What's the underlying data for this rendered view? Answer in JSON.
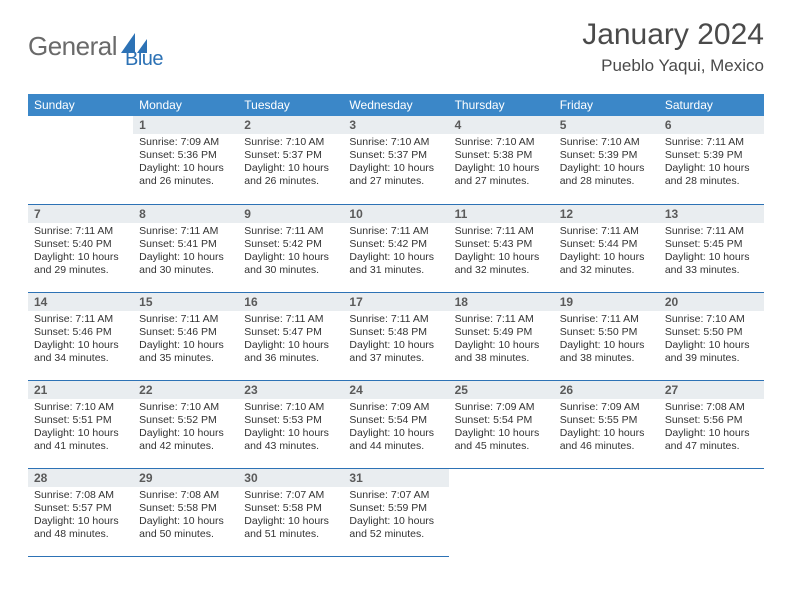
{
  "logo": {
    "part1": "General",
    "part2": "Blue"
  },
  "title": "January 2024",
  "location": "Pueblo Yaqui, Mexico",
  "colors": {
    "header_bg": "#3b87c8",
    "daynum_bg": "#e9edf0",
    "rule": "#2d72b5",
    "logo_gray": "#6a6a6a",
    "logo_blue": "#2d72b5"
  },
  "weekdays": [
    "Sunday",
    "Monday",
    "Tuesday",
    "Wednesday",
    "Thursday",
    "Friday",
    "Saturday"
  ],
  "weeks": [
    [
      null,
      {
        "n": "1",
        "sr": "Sunrise: 7:09 AM",
        "ss": "Sunset: 5:36 PM",
        "d1": "Daylight: 10 hours",
        "d2": "and 26 minutes."
      },
      {
        "n": "2",
        "sr": "Sunrise: 7:10 AM",
        "ss": "Sunset: 5:37 PM",
        "d1": "Daylight: 10 hours",
        "d2": "and 26 minutes."
      },
      {
        "n": "3",
        "sr": "Sunrise: 7:10 AM",
        "ss": "Sunset: 5:37 PM",
        "d1": "Daylight: 10 hours",
        "d2": "and 27 minutes."
      },
      {
        "n": "4",
        "sr": "Sunrise: 7:10 AM",
        "ss": "Sunset: 5:38 PM",
        "d1": "Daylight: 10 hours",
        "d2": "and 27 minutes."
      },
      {
        "n": "5",
        "sr": "Sunrise: 7:10 AM",
        "ss": "Sunset: 5:39 PM",
        "d1": "Daylight: 10 hours",
        "d2": "and 28 minutes."
      },
      {
        "n": "6",
        "sr": "Sunrise: 7:11 AM",
        "ss": "Sunset: 5:39 PM",
        "d1": "Daylight: 10 hours",
        "d2": "and 28 minutes."
      }
    ],
    [
      {
        "n": "7",
        "sr": "Sunrise: 7:11 AM",
        "ss": "Sunset: 5:40 PM",
        "d1": "Daylight: 10 hours",
        "d2": "and 29 minutes."
      },
      {
        "n": "8",
        "sr": "Sunrise: 7:11 AM",
        "ss": "Sunset: 5:41 PM",
        "d1": "Daylight: 10 hours",
        "d2": "and 30 minutes."
      },
      {
        "n": "9",
        "sr": "Sunrise: 7:11 AM",
        "ss": "Sunset: 5:42 PM",
        "d1": "Daylight: 10 hours",
        "d2": "and 30 minutes."
      },
      {
        "n": "10",
        "sr": "Sunrise: 7:11 AM",
        "ss": "Sunset: 5:42 PM",
        "d1": "Daylight: 10 hours",
        "d2": "and 31 minutes."
      },
      {
        "n": "11",
        "sr": "Sunrise: 7:11 AM",
        "ss": "Sunset: 5:43 PM",
        "d1": "Daylight: 10 hours",
        "d2": "and 32 minutes."
      },
      {
        "n": "12",
        "sr": "Sunrise: 7:11 AM",
        "ss": "Sunset: 5:44 PM",
        "d1": "Daylight: 10 hours",
        "d2": "and 32 minutes."
      },
      {
        "n": "13",
        "sr": "Sunrise: 7:11 AM",
        "ss": "Sunset: 5:45 PM",
        "d1": "Daylight: 10 hours",
        "d2": "and 33 minutes."
      }
    ],
    [
      {
        "n": "14",
        "sr": "Sunrise: 7:11 AM",
        "ss": "Sunset: 5:46 PM",
        "d1": "Daylight: 10 hours",
        "d2": "and 34 minutes."
      },
      {
        "n": "15",
        "sr": "Sunrise: 7:11 AM",
        "ss": "Sunset: 5:46 PM",
        "d1": "Daylight: 10 hours",
        "d2": "and 35 minutes."
      },
      {
        "n": "16",
        "sr": "Sunrise: 7:11 AM",
        "ss": "Sunset: 5:47 PM",
        "d1": "Daylight: 10 hours",
        "d2": "and 36 minutes."
      },
      {
        "n": "17",
        "sr": "Sunrise: 7:11 AM",
        "ss": "Sunset: 5:48 PM",
        "d1": "Daylight: 10 hours",
        "d2": "and 37 minutes."
      },
      {
        "n": "18",
        "sr": "Sunrise: 7:11 AM",
        "ss": "Sunset: 5:49 PM",
        "d1": "Daylight: 10 hours",
        "d2": "and 38 minutes."
      },
      {
        "n": "19",
        "sr": "Sunrise: 7:11 AM",
        "ss": "Sunset: 5:50 PM",
        "d1": "Daylight: 10 hours",
        "d2": "and 38 minutes."
      },
      {
        "n": "20",
        "sr": "Sunrise: 7:10 AM",
        "ss": "Sunset: 5:50 PM",
        "d1": "Daylight: 10 hours",
        "d2": "and 39 minutes."
      }
    ],
    [
      {
        "n": "21",
        "sr": "Sunrise: 7:10 AM",
        "ss": "Sunset: 5:51 PM",
        "d1": "Daylight: 10 hours",
        "d2": "and 41 minutes."
      },
      {
        "n": "22",
        "sr": "Sunrise: 7:10 AM",
        "ss": "Sunset: 5:52 PM",
        "d1": "Daylight: 10 hours",
        "d2": "and 42 minutes."
      },
      {
        "n": "23",
        "sr": "Sunrise: 7:10 AM",
        "ss": "Sunset: 5:53 PM",
        "d1": "Daylight: 10 hours",
        "d2": "and 43 minutes."
      },
      {
        "n": "24",
        "sr": "Sunrise: 7:09 AM",
        "ss": "Sunset: 5:54 PM",
        "d1": "Daylight: 10 hours",
        "d2": "and 44 minutes."
      },
      {
        "n": "25",
        "sr": "Sunrise: 7:09 AM",
        "ss": "Sunset: 5:54 PM",
        "d1": "Daylight: 10 hours",
        "d2": "and 45 minutes."
      },
      {
        "n": "26",
        "sr": "Sunrise: 7:09 AM",
        "ss": "Sunset: 5:55 PM",
        "d1": "Daylight: 10 hours",
        "d2": "and 46 minutes."
      },
      {
        "n": "27",
        "sr": "Sunrise: 7:08 AM",
        "ss": "Sunset: 5:56 PM",
        "d1": "Daylight: 10 hours",
        "d2": "and 47 minutes."
      }
    ],
    [
      {
        "n": "28",
        "sr": "Sunrise: 7:08 AM",
        "ss": "Sunset: 5:57 PM",
        "d1": "Daylight: 10 hours",
        "d2": "and 48 minutes."
      },
      {
        "n": "29",
        "sr": "Sunrise: 7:08 AM",
        "ss": "Sunset: 5:58 PM",
        "d1": "Daylight: 10 hours",
        "d2": "and 50 minutes."
      },
      {
        "n": "30",
        "sr": "Sunrise: 7:07 AM",
        "ss": "Sunset: 5:58 PM",
        "d1": "Daylight: 10 hours",
        "d2": "and 51 minutes."
      },
      {
        "n": "31",
        "sr": "Sunrise: 7:07 AM",
        "ss": "Sunset: 5:59 PM",
        "d1": "Daylight: 10 hours",
        "d2": "and 52 minutes."
      },
      null,
      null,
      null
    ]
  ]
}
